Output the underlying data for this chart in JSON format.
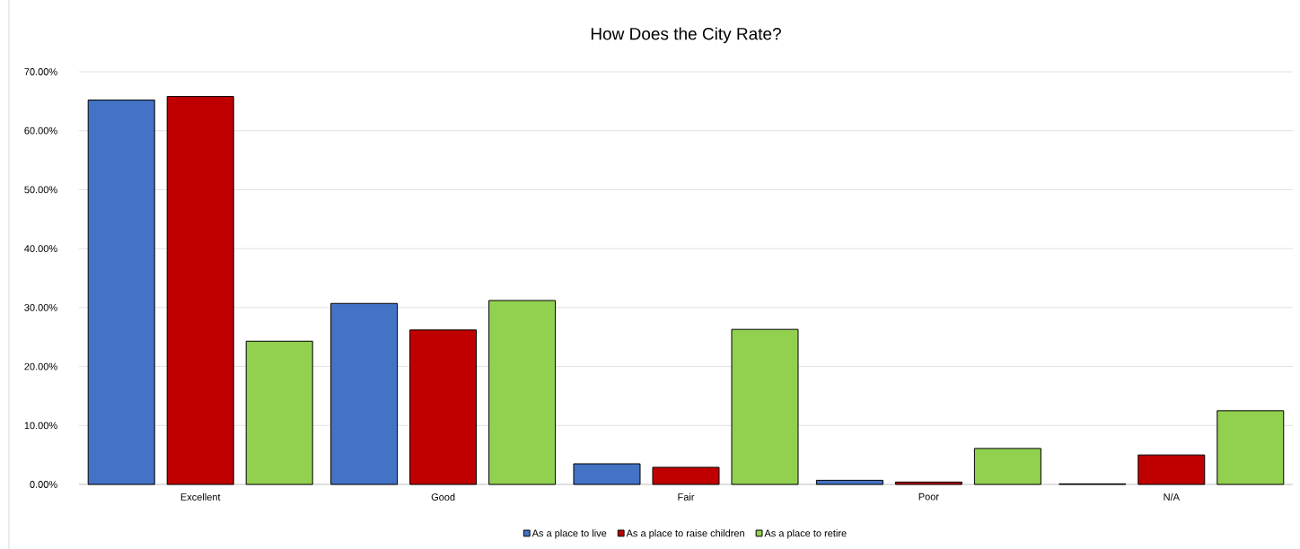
{
  "chart_data": {
    "type": "bar",
    "title": "How Does the City Rate?",
    "categories": [
      "Excellent",
      "Good",
      "Fair",
      "Poor",
      "N/A"
    ],
    "series": [
      {
        "name": "As a place to live",
        "color": "#4472c4",
        "values": [
          65.2,
          30.7,
          3.5,
          0.7,
          0.1
        ]
      },
      {
        "name": "As a place to raise children",
        "color": "#c00000",
        "values": [
          65.8,
          26.2,
          2.9,
          0.4,
          5.0
        ]
      },
      {
        "name": "As a place to retire",
        "color": "#92d050",
        "values": [
          24.3,
          31.2,
          26.3,
          6.1,
          12.5
        ]
      }
    ],
    "ylim": [
      0,
      70
    ],
    "yticks": [
      {
        "value": 0,
        "label": "0.00%"
      },
      {
        "value": 10,
        "label": "10.00%"
      },
      {
        "value": 20,
        "label": "20.00%"
      },
      {
        "value": 30,
        "label": "30.00%"
      },
      {
        "value": 40,
        "label": "40.00%"
      },
      {
        "value": 50,
        "label": "50.00%"
      },
      {
        "value": 60,
        "label": "60.00%"
      },
      {
        "value": 70,
        "label": "70.00%"
      }
    ],
    "grid": "y",
    "legend": "bottom"
  }
}
